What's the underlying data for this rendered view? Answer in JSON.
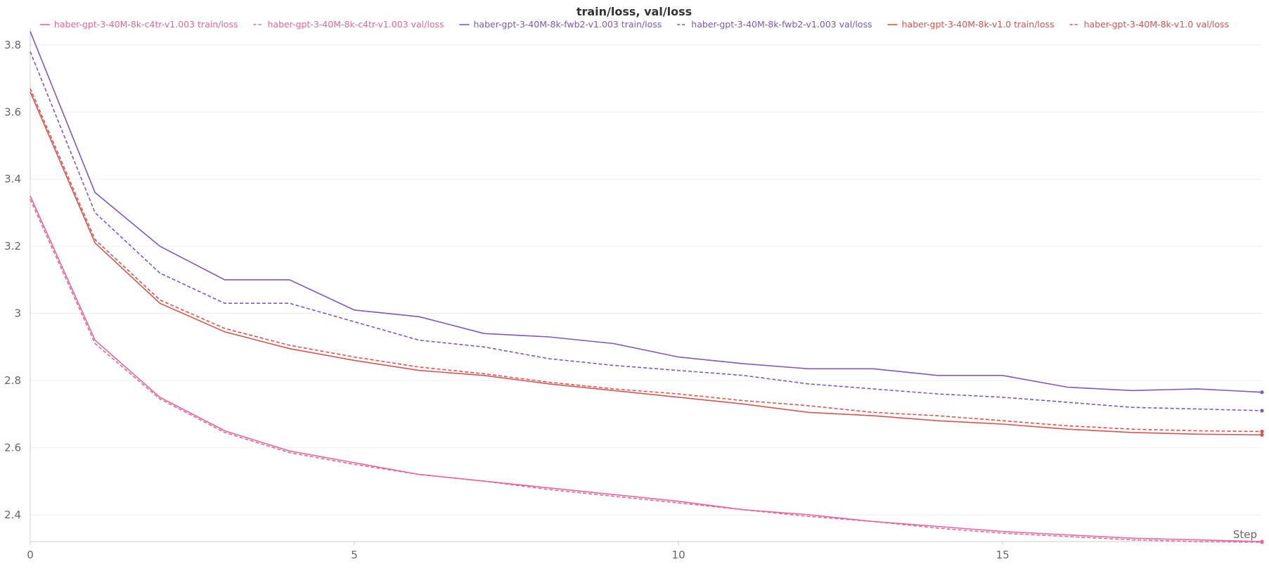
{
  "chart_data": {
    "type": "line",
    "title": "train/loss, val/loss",
    "xlabel": "Step",
    "ylabel": "",
    "xlim": [
      0,
      19
    ],
    "ylim": [
      2.32,
      3.85
    ],
    "x_ticks": [
      0,
      5,
      10,
      15
    ],
    "x_tick_labels": [
      "0",
      "5",
      "10",
      "15"
    ],
    "y_ticks": [
      2.4,
      2.6,
      2.8,
      3.0,
      3.2,
      3.4,
      3.6,
      3.8
    ],
    "y_tick_labels": [
      "2.4",
      "2.6",
      "2.8",
      "3",
      "3.2",
      "3.4",
      "3.6",
      "3.8"
    ],
    "grid": true,
    "legend_position": "top",
    "x": [
      0,
      1,
      2,
      3,
      4,
      5,
      6,
      7,
      8,
      9,
      10,
      11,
      12,
      13,
      14,
      15,
      16,
      17,
      18,
      19
    ],
    "series": [
      {
        "name": "haber-gpt-3-40M-8k-c4tr-v1.003 train/loss",
        "color": "#e8669a",
        "dash": false,
        "values": [
          3.35,
          2.92,
          2.75,
          2.65,
          2.59,
          2.555,
          2.52,
          2.5,
          2.48,
          2.46,
          2.44,
          2.415,
          2.4,
          2.38,
          2.365,
          2.35,
          2.34,
          2.33,
          2.325,
          2.32
        ]
      },
      {
        "name": "haber-gpt-3-40M-8k-c4tr-v1.003 val/loss",
        "color": "#e8669a",
        "dash": true,
        "values": [
          3.34,
          2.91,
          2.745,
          2.645,
          2.585,
          2.55,
          2.52,
          2.5,
          2.475,
          2.455,
          2.435,
          2.415,
          2.395,
          2.38,
          2.36,
          2.345,
          2.335,
          2.325,
          2.32,
          2.318
        ]
      },
      {
        "name": "haber-gpt-3-40M-8k-fwb2-v1.003 train/loss",
        "color": "#7e57c2",
        "dash": false,
        "values": [
          3.84,
          3.36,
          3.2,
          3.1,
          3.1,
          3.01,
          2.99,
          2.94,
          2.93,
          2.91,
          2.87,
          2.85,
          2.835,
          2.835,
          2.815,
          2.815,
          2.78,
          2.77,
          2.775,
          2.765
        ]
      },
      {
        "name": "haber-gpt-3-40M-8k-fwb2-v1.003 val/loss",
        "color": "#7e57c2",
        "dash": true,
        "values": [
          3.78,
          3.3,
          3.12,
          3.03,
          3.03,
          2.975,
          2.92,
          2.9,
          2.865,
          2.845,
          2.83,
          2.815,
          2.79,
          2.775,
          2.76,
          2.75,
          2.735,
          2.72,
          2.715,
          2.71
        ]
      },
      {
        "name": "haber-gpt-3-40M-8k-v1.0 train/loss",
        "color": "#d9534f",
        "dash": false,
        "values": [
          3.66,
          3.21,
          3.03,
          2.945,
          2.895,
          2.86,
          2.83,
          2.815,
          2.79,
          2.77,
          2.75,
          2.73,
          2.705,
          2.695,
          2.68,
          2.67,
          2.655,
          2.645,
          2.64,
          2.638
        ]
      },
      {
        "name": "haber-gpt-3-40M-8k-v1.0 val/loss",
        "color": "#d9534f",
        "dash": true,
        "values": [
          3.67,
          3.22,
          3.04,
          2.955,
          2.905,
          2.87,
          2.84,
          2.82,
          2.795,
          2.775,
          2.76,
          2.74,
          2.725,
          2.705,
          2.695,
          2.68,
          2.665,
          2.655,
          2.65,
          2.648
        ]
      }
    ]
  }
}
